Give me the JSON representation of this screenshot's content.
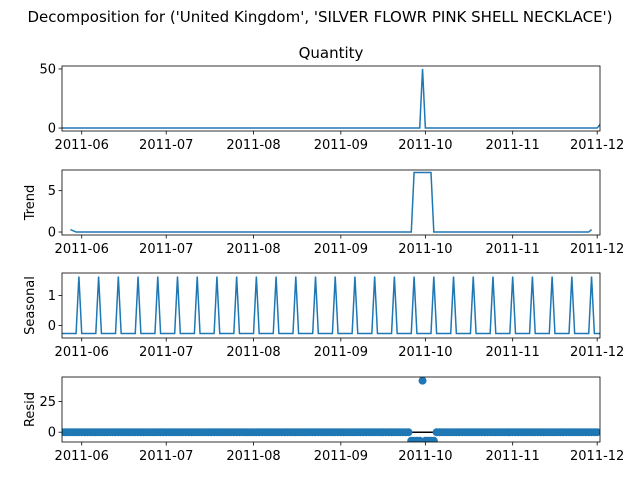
{
  "chart_data": {
    "type": "line",
    "suptitle": "Decomposition for ('United Kingdom', 'SILVER FLOWR PINK SHELL NECKLACE')",
    "x_range": [
      "2011-05-25",
      "2011-12-02"
    ],
    "x_ticks": [
      "2011-06",
      "2011-07",
      "2011-08",
      "2011-09",
      "2011-10",
      "2011-11",
      "2011-12"
    ],
    "x_tick_dates": [
      "2011-06-01",
      "2011-07-01",
      "2011-08-01",
      "2011-09-01",
      "2011-10-01",
      "2011-11-01",
      "2011-12-01"
    ],
    "line_color": "#1f77b4",
    "panels": [
      {
        "title": "Quantity",
        "ylabel": "",
        "ylim": [
          -2.5,
          52.5
        ],
        "yticks": [
          0,
          50
        ],
        "series": {
          "start": "2011-05-25",
          "end": "2011-12-02",
          "baseline": 0,
          "events": [
            {
              "date": "2011-09-30",
              "value": 50
            },
            {
              "date": "2011-12-02",
              "value": 3
            }
          ]
        }
      },
      {
        "title": "",
        "ylabel": "Trend",
        "ylim": [
          -0.36,
          7.5
        ],
        "yticks": [
          0,
          5
        ],
        "series": {
          "points": [
            [
              "2011-05-28",
              0.3
            ],
            [
              "2011-05-30",
              0
            ],
            [
              "2011-09-26",
              0
            ],
            [
              "2011-09-27",
              7.2
            ],
            [
              "2011-10-03",
              7.2
            ],
            [
              "2011-10-04",
              0
            ],
            [
              "2011-11-28",
              0
            ],
            [
              "2011-11-29",
              0.3
            ]
          ]
        }
      },
      {
        "title": "",
        "ylabel": "Seasonal",
        "ylim": [
          -0.42,
          1.75
        ],
        "yticks": [
          0,
          1
        ],
        "series": {
          "base": -0.27,
          "peak": 1.63,
          "period_days": 7,
          "first_peak": "2011-05-31",
          "start": "2011-05-25",
          "end": "2011-12-02"
        }
      },
      {
        "title": "",
        "ylabel": "Resid",
        "ylim": [
          -8,
          45
        ],
        "yticks": [
          0,
          25
        ],
        "zero_line": true,
        "series": {
          "start": "2011-05-25",
          "end": "2011-12-01",
          "default_value": 0,
          "outlier": {
            "date": "2011-09-30",
            "value": 42
          },
          "low_range": [
            "2011-09-26",
            "2011-10-04"
          ],
          "low_value": -7
        }
      }
    ]
  }
}
